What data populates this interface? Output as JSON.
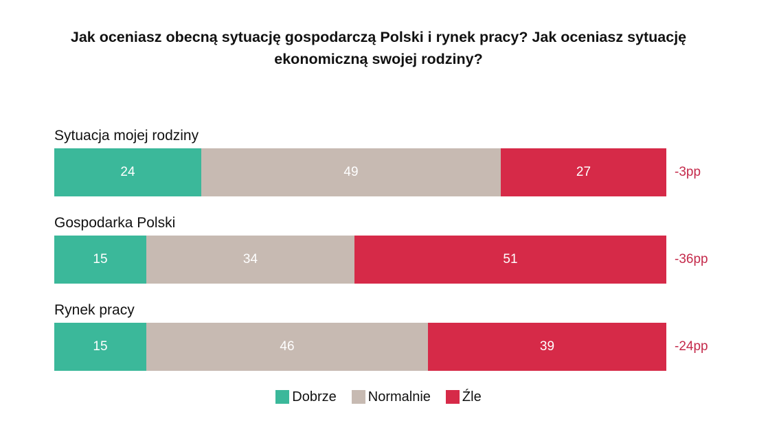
{
  "title_line_1": "Jak oceniasz obecną sytuację gospodarczą Polski i rynek pracy? Jak oceniasz sytuację",
  "title_line_2": "ekonomiczną swojej rodziny?",
  "colors": {
    "dobrze": "#3bb89a",
    "normalnie": "#c7bab2",
    "zle": "#d62a48",
    "diff_text": "#c4294a"
  },
  "legend": [
    {
      "label": "Dobrze",
      "color_key": "dobrze"
    },
    {
      "label": "Normalnie",
      "color_key": "normalnie"
    },
    {
      "label": "Źle",
      "color_key": "zle"
    }
  ],
  "chart_data": {
    "type": "bar",
    "orientation": "horizontal",
    "stacked": true,
    "title": "Jak oceniasz obecną sytuację gospodarczą Polski i rynek pracy? Jak oceniasz sytuację ekonomiczną swojej rodziny?",
    "categories": [
      "Sytuacja mojej rodziny",
      "Gospodarka Polski",
      "Rynek pracy"
    ],
    "series": [
      {
        "name": "Dobrze",
        "values": [
          24,
          15,
          15
        ]
      },
      {
        "name": "Normalnie",
        "values": [
          49,
          34,
          46
        ]
      },
      {
        "name": "Źle",
        "values": [
          27,
          51,
          39
        ]
      }
    ],
    "net_labels": [
      "-3pp",
      "-36pp",
      "-24pp"
    ],
    "xlim": [
      0,
      100
    ],
    "legend_position": "bottom",
    "grid": false
  }
}
